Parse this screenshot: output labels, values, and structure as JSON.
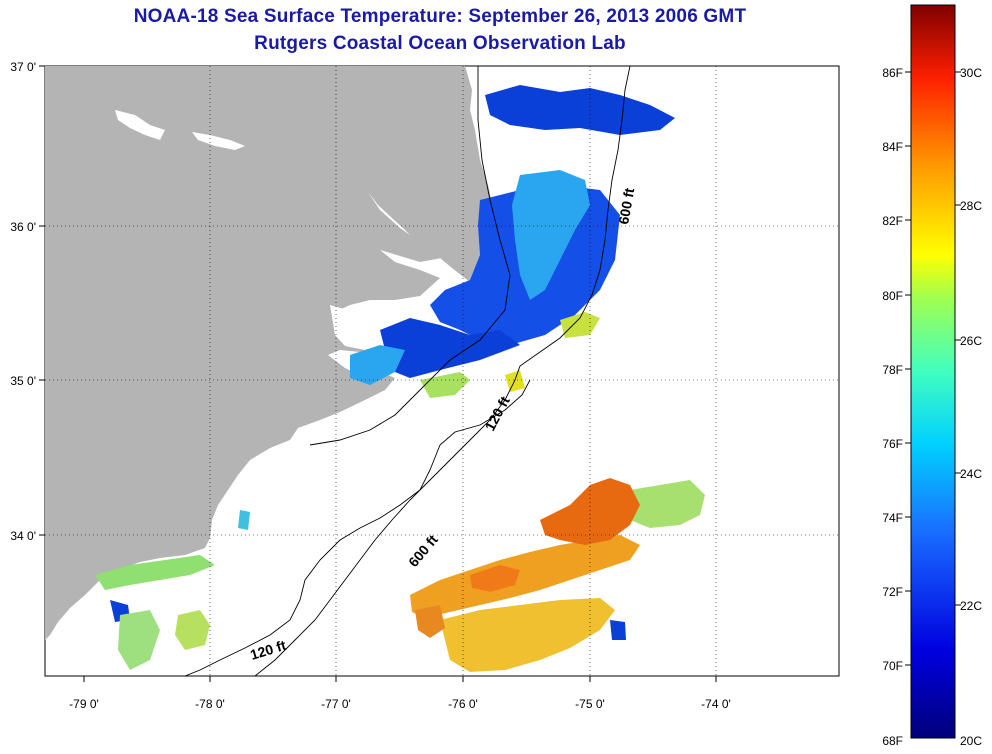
{
  "title_line1": "NOAA-18 Sea Surface Temperature:  September 26, 2013 2006 GMT",
  "title_line2": "Rutgers Coastal Ocean Observation Lab",
  "lon_labels": [
    "-79 0'",
    "-78 0'",
    "-77 0'",
    "-76 0'",
    "-75 0'",
    "-74 0'"
  ],
  "lat_labels": [
    "37 0'",
    "36 0'",
    "35 0'",
    "34 0'"
  ],
  "isobath_labels": {
    "north_600": "600 ft",
    "mid_120": "120 ft",
    "mid_600": "600 ft",
    "south_120": "120 ft"
  },
  "colorbar": {
    "f_labels": [
      "86F",
      "84F",
      "82F",
      "80F",
      "78F",
      "76F",
      "74F",
      "72F",
      "70F",
      "68F"
    ],
    "c_labels": [
      "30C",
      "28C",
      "26C",
      "24C",
      "22C",
      "20C"
    ]
  },
  "colors": {
    "title": "#1a1aa8",
    "land": "#b4b4b4",
    "cold": "#0a3fd8",
    "cool": "#2aa6f0",
    "mild": "#8fe070",
    "warm": "#f0a020",
    "hot": "#e86a10"
  }
}
